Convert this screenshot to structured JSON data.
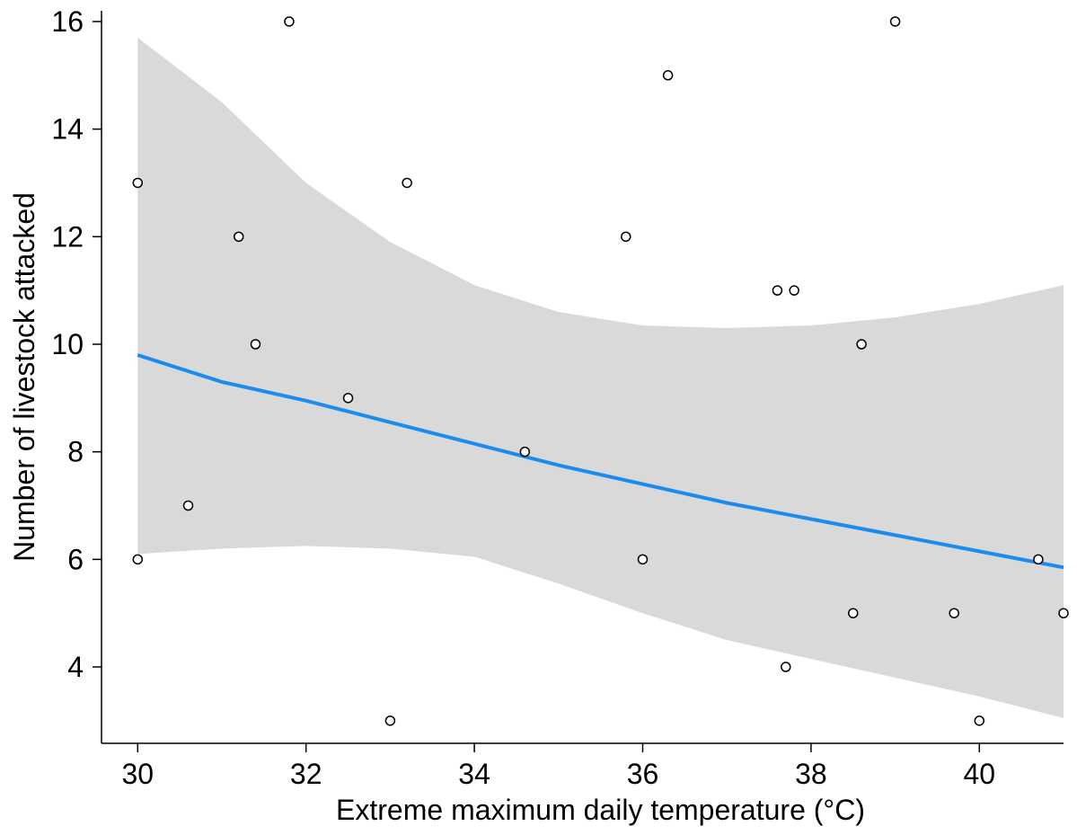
{
  "chart_data": {
    "type": "scatter",
    "xlabel": "Extreme maximum daily temperature (°C)",
    "ylabel": "Number of livestock attacked",
    "xlim": [
      29.57,
      41.0
    ],
    "ylim": [
      2.58,
      16.2
    ],
    "x_ticks": [
      30,
      32,
      34,
      36,
      38,
      40
    ],
    "y_ticks": [
      4,
      6,
      8,
      10,
      12,
      14,
      16
    ],
    "grid": false,
    "legend": "none",
    "points": [
      {
        "x": 30.0,
        "y": 13
      },
      {
        "x": 30.0,
        "y": 6
      },
      {
        "x": 30.6,
        "y": 7
      },
      {
        "x": 31.2,
        "y": 12
      },
      {
        "x": 31.4,
        "y": 10
      },
      {
        "x": 31.8,
        "y": 16
      },
      {
        "x": 32.5,
        "y": 9
      },
      {
        "x": 33.0,
        "y": 3
      },
      {
        "x": 33.2,
        "y": 13
      },
      {
        "x": 34.6,
        "y": 8
      },
      {
        "x": 35.8,
        "y": 12
      },
      {
        "x": 36.0,
        "y": 6
      },
      {
        "x": 36.3,
        "y": 15
      },
      {
        "x": 37.6,
        "y": 11
      },
      {
        "x": 37.7,
        "y": 4
      },
      {
        "x": 37.8,
        "y": 11
      },
      {
        "x": 38.5,
        "y": 5
      },
      {
        "x": 38.6,
        "y": 10
      },
      {
        "x": 39.0,
        "y": 16
      },
      {
        "x": 39.7,
        "y": 5
      },
      {
        "x": 40.0,
        "y": 3
      },
      {
        "x": 40.7,
        "y": 6
      },
      {
        "x": 41.0,
        "y": 5
      }
    ],
    "fit_line": {
      "color": "#1a8cf0",
      "points": [
        {
          "x": 30,
          "y": 9.8
        },
        {
          "x": 31,
          "y": 9.3
        },
        {
          "x": 32,
          "y": 8.95
        },
        {
          "x": 33,
          "y": 8.55
        },
        {
          "x": 34,
          "y": 8.15
        },
        {
          "x": 35,
          "y": 7.75
        },
        {
          "x": 36,
          "y": 7.4
        },
        {
          "x": 37,
          "y": 7.05
        },
        {
          "x": 38,
          "y": 6.75
        },
        {
          "x": 39,
          "y": 6.45
        },
        {
          "x": 40,
          "y": 6.15
        },
        {
          "x": 41,
          "y": 5.85
        }
      ]
    },
    "confidence_band": {
      "color": "#d9d9d9",
      "upper": [
        {
          "x": 30,
          "y": 15.7
        },
        {
          "x": 31,
          "y": 14.5
        },
        {
          "x": 32,
          "y": 13.0
        },
        {
          "x": 33,
          "y": 11.9
        },
        {
          "x": 34,
          "y": 11.1
        },
        {
          "x": 35,
          "y": 10.6
        },
        {
          "x": 36,
          "y": 10.35
        },
        {
          "x": 37,
          "y": 10.3
        },
        {
          "x": 38,
          "y": 10.35
        },
        {
          "x": 39,
          "y": 10.5
        },
        {
          "x": 40,
          "y": 10.75
        },
        {
          "x": 41,
          "y": 11.1
        }
      ],
      "lower": [
        {
          "x": 30,
          "y": 6.1
        },
        {
          "x": 31,
          "y": 6.2
        },
        {
          "x": 32,
          "y": 6.25
        },
        {
          "x": 33,
          "y": 6.2
        },
        {
          "x": 34,
          "y": 6.05
        },
        {
          "x": 35,
          "y": 5.55
        },
        {
          "x": 36,
          "y": 5.0
        },
        {
          "x": 37,
          "y": 4.5
        },
        {
          "x": 38,
          "y": 4.15
        },
        {
          "x": 39,
          "y": 3.8
        },
        {
          "x": 40,
          "y": 3.45
        },
        {
          "x": 41,
          "y": 3.05
        }
      ]
    }
  }
}
